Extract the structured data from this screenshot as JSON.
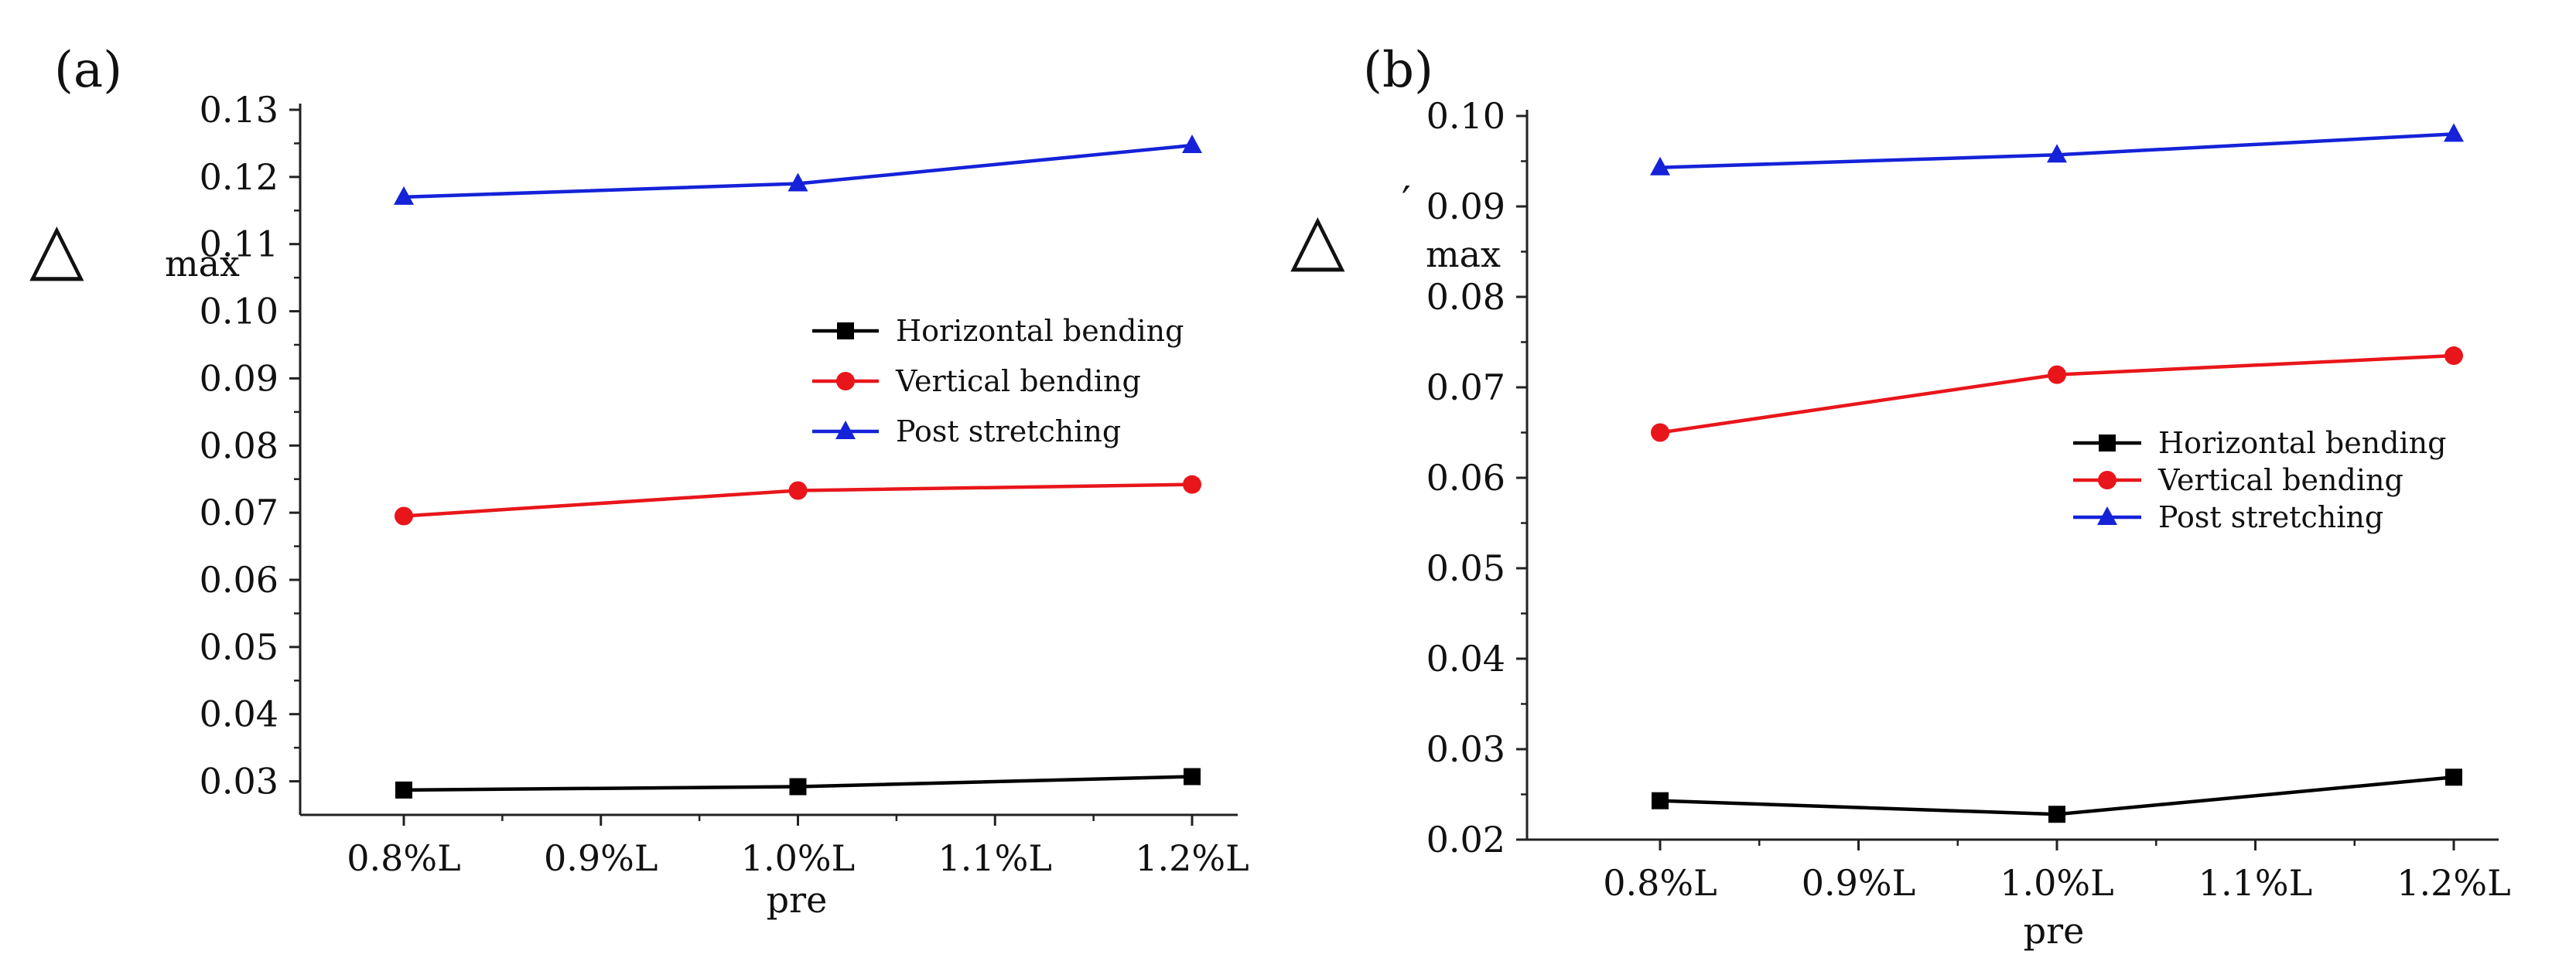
{
  "chart_data": [
    {
      "type": "line",
      "panel_label": "(a)",
      "title": "",
      "xlabel": "pre",
      "ylabel": {
        "symbol": "△",
        "prime": "",
        "subscript": "max"
      },
      "categories": [
        "0.8%L",
        "0.9%L",
        "1.0%L",
        "1.1%L",
        "1.2%L"
      ],
      "ylim": [
        0.025,
        0.13
      ],
      "yticks": [
        "0.03",
        "0.04",
        "0.05",
        "0.06",
        "0.07",
        "0.08",
        "0.09",
        "0.10",
        "0.11",
        "0.12",
        "0.13"
      ],
      "grid": false,
      "legend_position": "center-right",
      "series": [
        {
          "name": "Horizontal bending",
          "color": "#000000",
          "marker": "square",
          "x": [
            "0.8%L",
            "1.0%L",
            "1.2%L"
          ],
          "values": [
            0.0287,
            0.0292,
            0.0307
          ]
        },
        {
          "name": "Vertical bending",
          "color": "#e8161b",
          "marker": "circle",
          "x": [
            "0.8%L",
            "1.0%L",
            "1.2%L"
          ],
          "values": [
            0.0695,
            0.0733,
            0.0742
          ]
        },
        {
          "name": "Post stretching",
          "color": "#1522d8",
          "marker": "triangle",
          "x": [
            "0.8%L",
            "1.0%L",
            "1.2%L"
          ],
          "values": [
            0.117,
            0.119,
            0.1247
          ]
        }
      ]
    },
    {
      "type": "line",
      "panel_label": "(b)",
      "title": "",
      "xlabel": "pre",
      "ylabel": {
        "symbol": "△",
        "prime": "′",
        "subscript": "max"
      },
      "categories": [
        "0.8%L",
        "0.9%L",
        "1.0%L",
        "1.1%L",
        "1.2%L"
      ],
      "ylim": [
        0.02,
        0.1
      ],
      "yticks": [
        "0.02",
        "0.03",
        "0.04",
        "0.05",
        "0.06",
        "0.07",
        "0.08",
        "0.09",
        "0.10"
      ],
      "grid": false,
      "legend_position": "center-right",
      "series": [
        {
          "name": "Horizontal bending",
          "color": "#000000",
          "marker": "square",
          "x": [
            "0.8%L",
            "1.0%L",
            "1.2%L"
          ],
          "values": [
            0.0243,
            0.0228,
            0.0269
          ]
        },
        {
          "name": "Vertical bending",
          "color": "#e8161b",
          "marker": "circle",
          "x": [
            "0.8%L",
            "1.0%L",
            "1.2%L"
          ],
          "values": [
            0.065,
            0.0714,
            0.0735
          ]
        },
        {
          "name": "Post stretching",
          "color": "#1522d8",
          "marker": "triangle",
          "x": [
            "0.8%L",
            "1.0%L",
            "1.2%L"
          ],
          "values": [
            0.0943,
            0.0957,
            0.098
          ]
        }
      ]
    }
  ]
}
